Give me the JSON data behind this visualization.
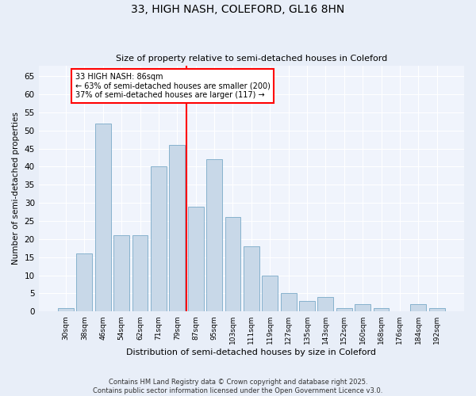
{
  "title1": "33, HIGH NASH, COLEFORD, GL16 8HN",
  "title2": "Size of property relative to semi-detached houses in Coleford",
  "xlabel": "Distribution of semi-detached houses by size in Coleford",
  "ylabel": "Number of semi-detached properties",
  "categories": [
    "30sqm",
    "38sqm",
    "46sqm",
    "54sqm",
    "62sqm",
    "71sqm",
    "79sqm",
    "87sqm",
    "95sqm",
    "103sqm",
    "111sqm",
    "119sqm",
    "127sqm",
    "135sqm",
    "143sqm",
    "152sqm",
    "160sqm",
    "168sqm",
    "176sqm",
    "184sqm",
    "192sqm"
  ],
  "values": [
    1,
    16,
    52,
    21,
    21,
    40,
    46,
    29,
    42,
    26,
    18,
    10,
    5,
    3,
    4,
    1,
    2,
    1,
    0,
    2,
    1
  ],
  "bar_color": "#c8d8e8",
  "bar_edge_color": "#7aaac8",
  "property_bin_index": 7,
  "vline_color": "red",
  "annotation_text": "33 HIGH NASH: 86sqm\n← 63% of semi-detached houses are smaller (200)\n37% of semi-detached houses are larger (117) →",
  "annotation_box_color": "white",
  "annotation_box_edge_color": "red",
  "ylim": [
    0,
    68
  ],
  "yticks": [
    0,
    5,
    10,
    15,
    20,
    25,
    30,
    35,
    40,
    45,
    50,
    55,
    60,
    65
  ],
  "bg_color": "#e8eef8",
  "plot_bg_color": "#f0f4fc",
  "grid_color": "#ffffff",
  "title_fontsize": 10,
  "subtitle_fontsize": 8.5,
  "footer_text": "Contains HM Land Registry data © Crown copyright and database right 2025.\nContains public sector information licensed under the Open Government Licence v3.0."
}
